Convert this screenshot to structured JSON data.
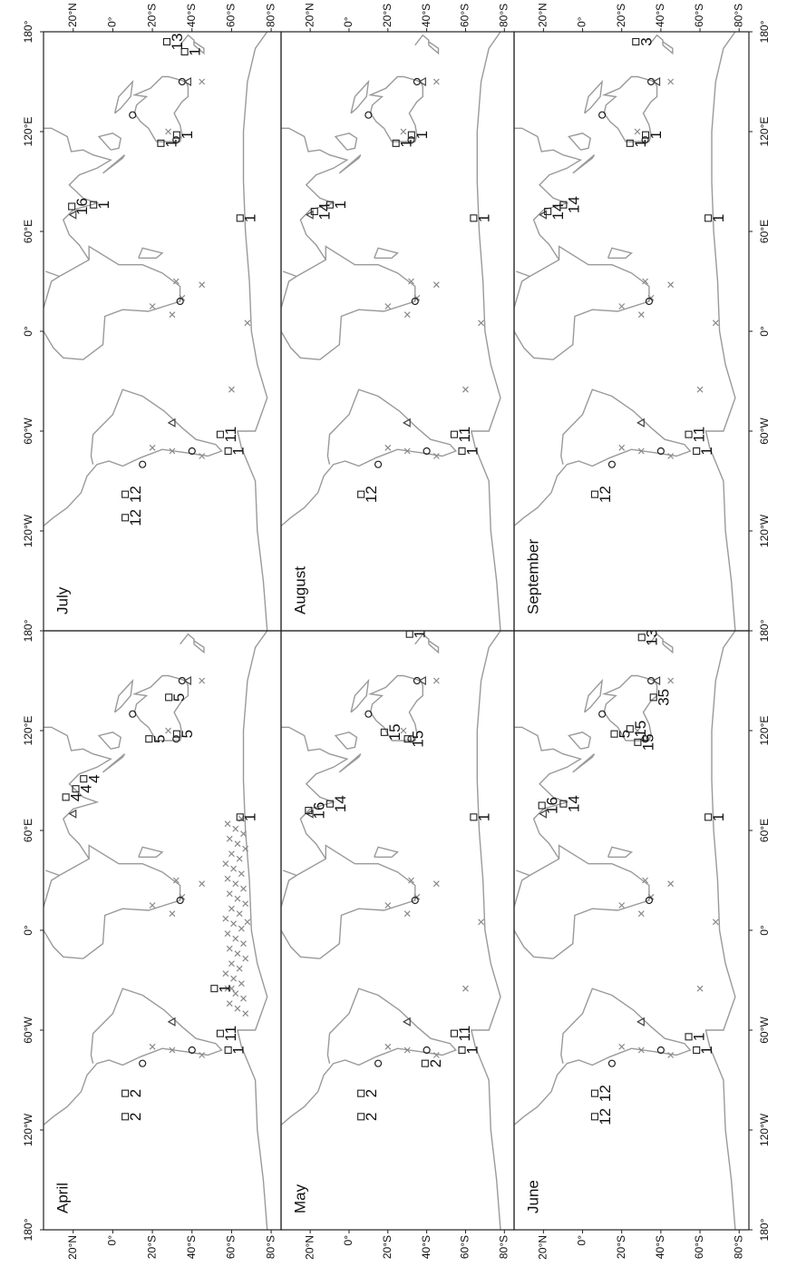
{
  "axes": {
    "longitude_ticks": [
      "180°",
      "120°W",
      "60°W",
      "0°",
      "60°E",
      "120°E",
      "180°"
    ],
    "latitude_ticks": [
      "20°N",
      "0°",
      "20°S",
      "40°S",
      "60°S",
      "80°S"
    ]
  },
  "panels": [
    {
      "title": "April",
      "labels": [
        "2",
        "2",
        "1",
        "1",
        "11",
        "1",
        "4",
        "4",
        "4",
        "5",
        "5",
        "5"
      ]
    },
    {
      "title": "May",
      "labels": [
        "2",
        "2",
        "2",
        "1",
        "11",
        "1",
        "16",
        "14",
        "15",
        "15",
        "1"
      ]
    },
    {
      "title": "June",
      "labels": [
        "12",
        "12",
        "1",
        "1",
        "16",
        "14",
        "1",
        "5",
        "15",
        "15",
        "35",
        "13"
      ]
    },
    {
      "title": "July",
      "labels": [
        "12",
        "12",
        "1",
        "11",
        "16",
        "1",
        "1",
        "1",
        "1",
        "1",
        "13"
      ]
    },
    {
      "title": "August",
      "labels": [
        "12",
        "1",
        "11",
        "14",
        "1",
        "1",
        "1",
        "1"
      ]
    },
    {
      "title": "September",
      "labels": [
        "12",
        "1",
        "11",
        "14",
        "14",
        "1",
        "1",
        "1",
        "3"
      ]
    }
  ]
}
